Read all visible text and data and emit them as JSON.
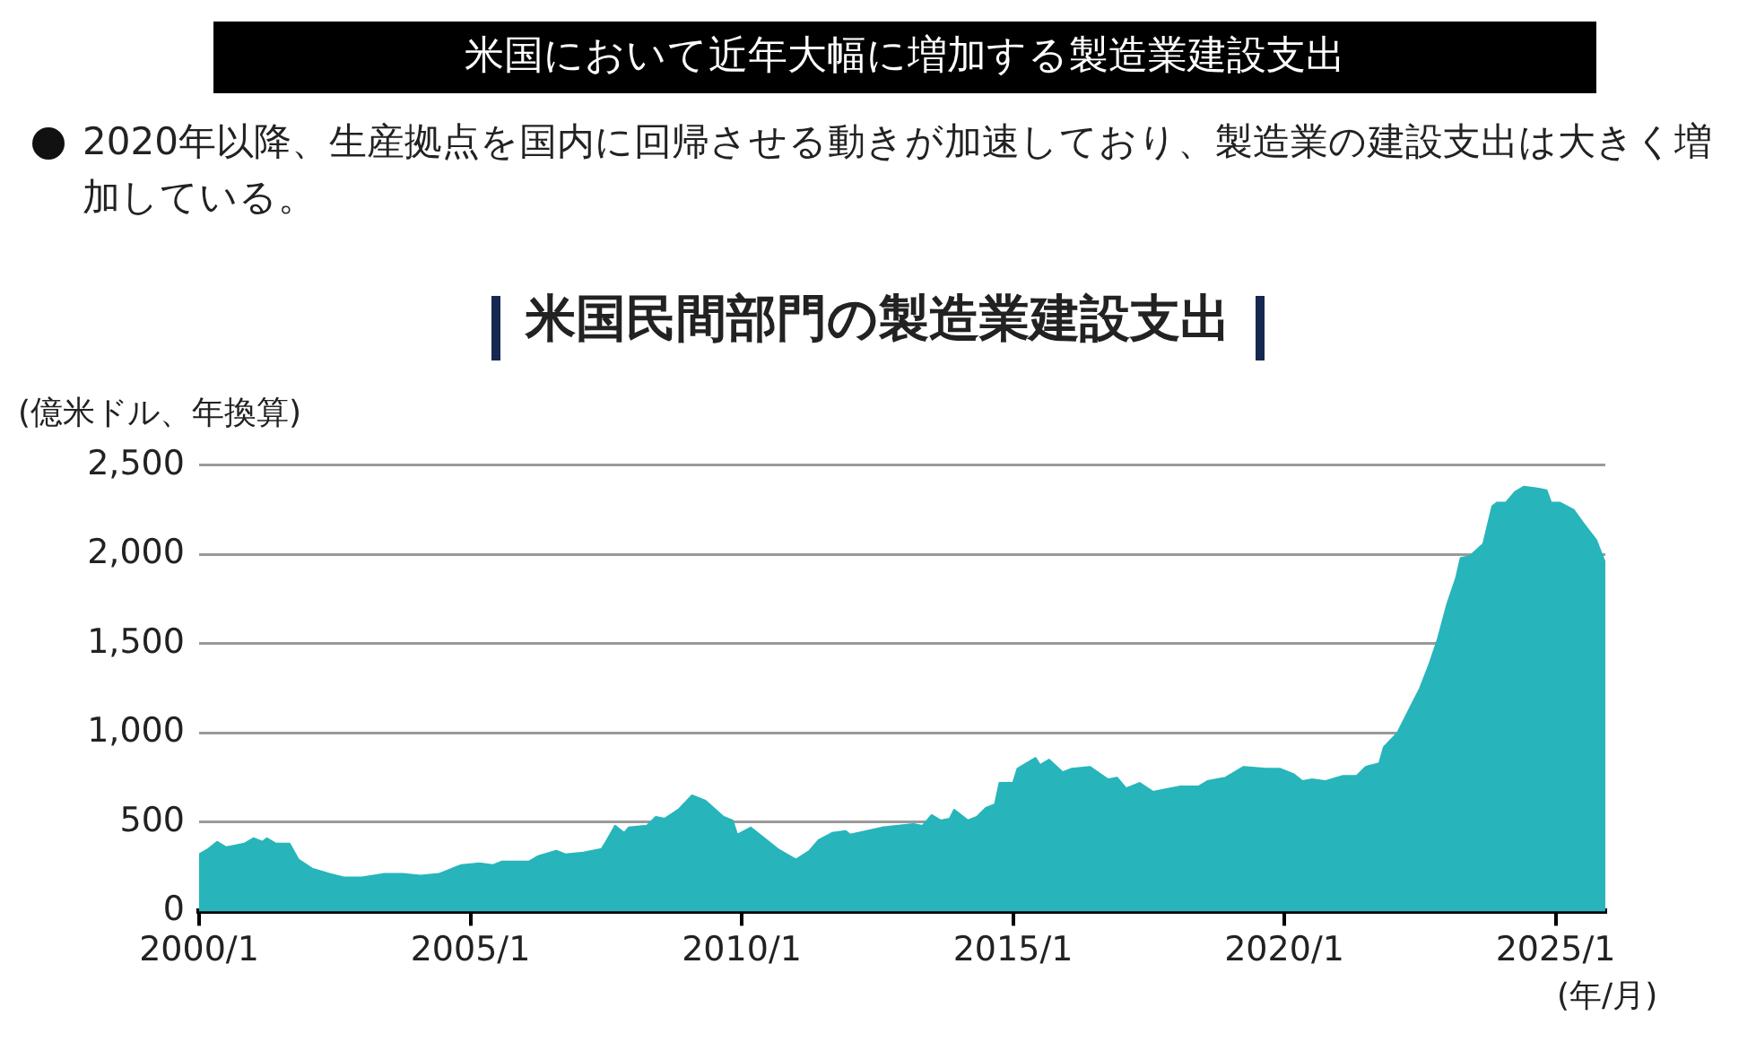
{
  "chart_data": {
    "type": "area",
    "title": "米国において近年大幅に増加する製造業建設支出",
    "subtitle": "米国民間部門の製造業建設支出",
    "annotations": [
      "2020年以降、生産拠点を国内に回帰させる動きが加速しており、製造業の建設支出は大きく増加している。"
    ],
    "ylabel": "(億米ドル、年換算)",
    "xlabel": "(年/月)",
    "xlim": [
      "2000-01",
      "2025-12"
    ],
    "ylim": [
      0,
      2500
    ],
    "xticks": [
      {
        "value": "2000-01",
        "label": "2000/1"
      },
      {
        "value": "2005-01",
        "label": "2005/1"
      },
      {
        "value": "2010-01",
        "label": "2010/1"
      },
      {
        "value": "2015-01",
        "label": "2015/1"
      },
      {
        "value": "2020-01",
        "label": "2020/1"
      },
      {
        "value": "2025-01",
        "label": "2025/1"
      }
    ],
    "yticks": [
      0,
      500,
      {
        "value": 1000,
        "label": "1,000"
      },
      {
        "value": 1500,
        "label": "1,500"
      },
      {
        "value": 2000,
        "label": "2,000"
      },
      {
        "value": 2500,
        "label": "2,500"
      }
    ],
    "grid": "y",
    "x": [
      "2000-01",
      "2000-03",
      "2000-05",
      "2000-07",
      "2000-11",
      "2001-01",
      "2001-03",
      "2001-04",
      "2001-06",
      "2001-09",
      "2001-11",
      "2002-02",
      "2002-06",
      "2002-09",
      "2003-01",
      "2003-06",
      "2003-10",
      "2004-02",
      "2004-06",
      "2004-08",
      "2004-11",
      "2005-03",
      "2005-06",
      "2005-08",
      "2006-02",
      "2006-04",
      "2006-08",
      "2006-10",
      "2007-02",
      "2007-06",
      "2007-07",
      "2007-09",
      "2007-11",
      "2007-12",
      "2008-04",
      "2008-06",
      "2008-08",
      "2008-11",
      "2009-02",
      "2009-05",
      "2009-09",
      "2009-11",
      "2009-12",
      "2010-03",
      "2010-05",
      "2010-09",
      "2011-01",
      "2011-04",
      "2011-06",
      "2011-09",
      "2011-12",
      "2012-01",
      "2012-08",
      "2013-03",
      "2013-05",
      "2013-07",
      "2013-09",
      "2013-11",
      "2013-12",
      "2014-03",
      "2014-05",
      "2014-07",
      "2014-09",
      "2014-10",
      "2015-01",
      "2015-02",
      "2015-06",
      "2015-07",
      "2015-09",
      "2015-12",
      "2016-02",
      "2016-06",
      "2016-10",
      "2016-12",
      "2017-02",
      "2017-05",
      "2017-08",
      "2018-02",
      "2018-06",
      "2018-08",
      "2018-12",
      "2019-04",
      "2019-09",
      "2019-12",
      "2020-03",
      "2020-05",
      "2020-07",
      "2020-10",
      "2021-02",
      "2021-05",
      "2021-07",
      "2021-10",
      "2021-11",
      "2022-02",
      "2022-05",
      "2022-07",
      "2022-09",
      "2022-11",
      "2023-01",
      "2023-03",
      "2023-04",
      "2023-06",
      "2023-09",
      "2023-11",
      "2023-12",
      "2024-02",
      "2024-04",
      "2024-06",
      "2024-09",
      "2024-11",
      "2024-12",
      "2025-02",
      "2025-05",
      "2025-07",
      "2025-10",
      "2025-12"
    ],
    "series": [
      {
        "color": "#27b5bb",
        "values": [
          320,
          350,
          390,
          360,
          380,
          410,
          390,
          410,
          380,
          380,
          290,
          240,
          210,
          190,
          190,
          210,
          210,
          200,
          210,
          230,
          260,
          270,
          260,
          280,
          280,
          310,
          340,
          320,
          330,
          350,
          390,
          480,
          440,
          470,
          480,
          530,
          520,
          570,
          650,
          620,
          530,
          510,
          430,
          470,
          430,
          350,
          290,
          340,
          400,
          440,
          450,
          430,
          470,
          490,
          480,
          540,
          510,
          520,
          570,
          510,
          530,
          580,
          600,
          720,
          720,
          800,
          860,
          820,
          850,
          780,
          800,
          810,
          740,
          750,
          690,
          720,
          670,
          700,
          700,
          730,
          750,
          810,
          800,
          800,
          770,
          730,
          740,
          730,
          760,
          760,
          810,
          830,
          920,
          1000,
          1150,
          1250,
          1380,
          1530,
          1720,
          1870,
          1980,
          1990,
          2060,
          2270,
          2290,
          2290,
          2350,
          2380,
          2370,
          2360,
          2290,
          2290,
          2250,
          2180,
          2080,
          1950
        ]
      }
    ]
  }
}
